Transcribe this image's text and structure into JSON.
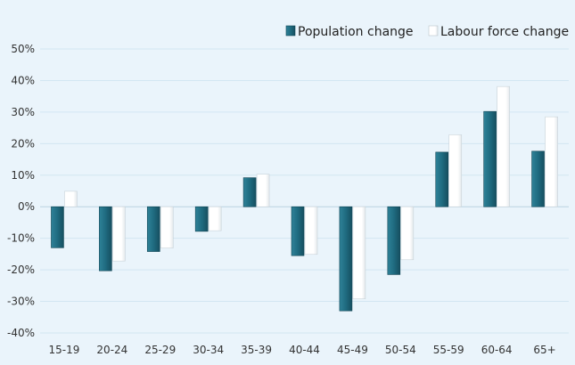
{
  "chart_data": {
    "type": "bar",
    "categories": [
      "15-19",
      "20-24",
      "25-29",
      "30-34",
      "35-39",
      "40-44",
      "45-49",
      "50-54",
      "55-59",
      "60-64",
      "65+"
    ],
    "series": [
      {
        "name": "Population change",
        "values": [
          -13,
          -20.3,
          -14.2,
          -7.8,
          9.2,
          -15.5,
          -33,
          -21.5,
          17.3,
          30.2,
          17.6
        ],
        "color": "#1f6b80"
      },
      {
        "name": "Labour force change",
        "values": [
          4.9,
          -17.2,
          -13.1,
          -7.6,
          10.3,
          -15.1,
          -29.2,
          -16.8,
          22.8,
          38.1,
          28.5
        ],
        "color": "#ffffff"
      }
    ],
    "y_ticks": [
      "50%",
      "40%",
      "30%",
      "20%",
      "10%",
      "0%",
      "-10%",
      "-20%",
      "-30%",
      "-40%"
    ],
    "ylim": [
      -40,
      50
    ],
    "grid": true,
    "legend_position": "top-right",
    "title": "",
    "xlabel": "",
    "ylabel": ""
  }
}
